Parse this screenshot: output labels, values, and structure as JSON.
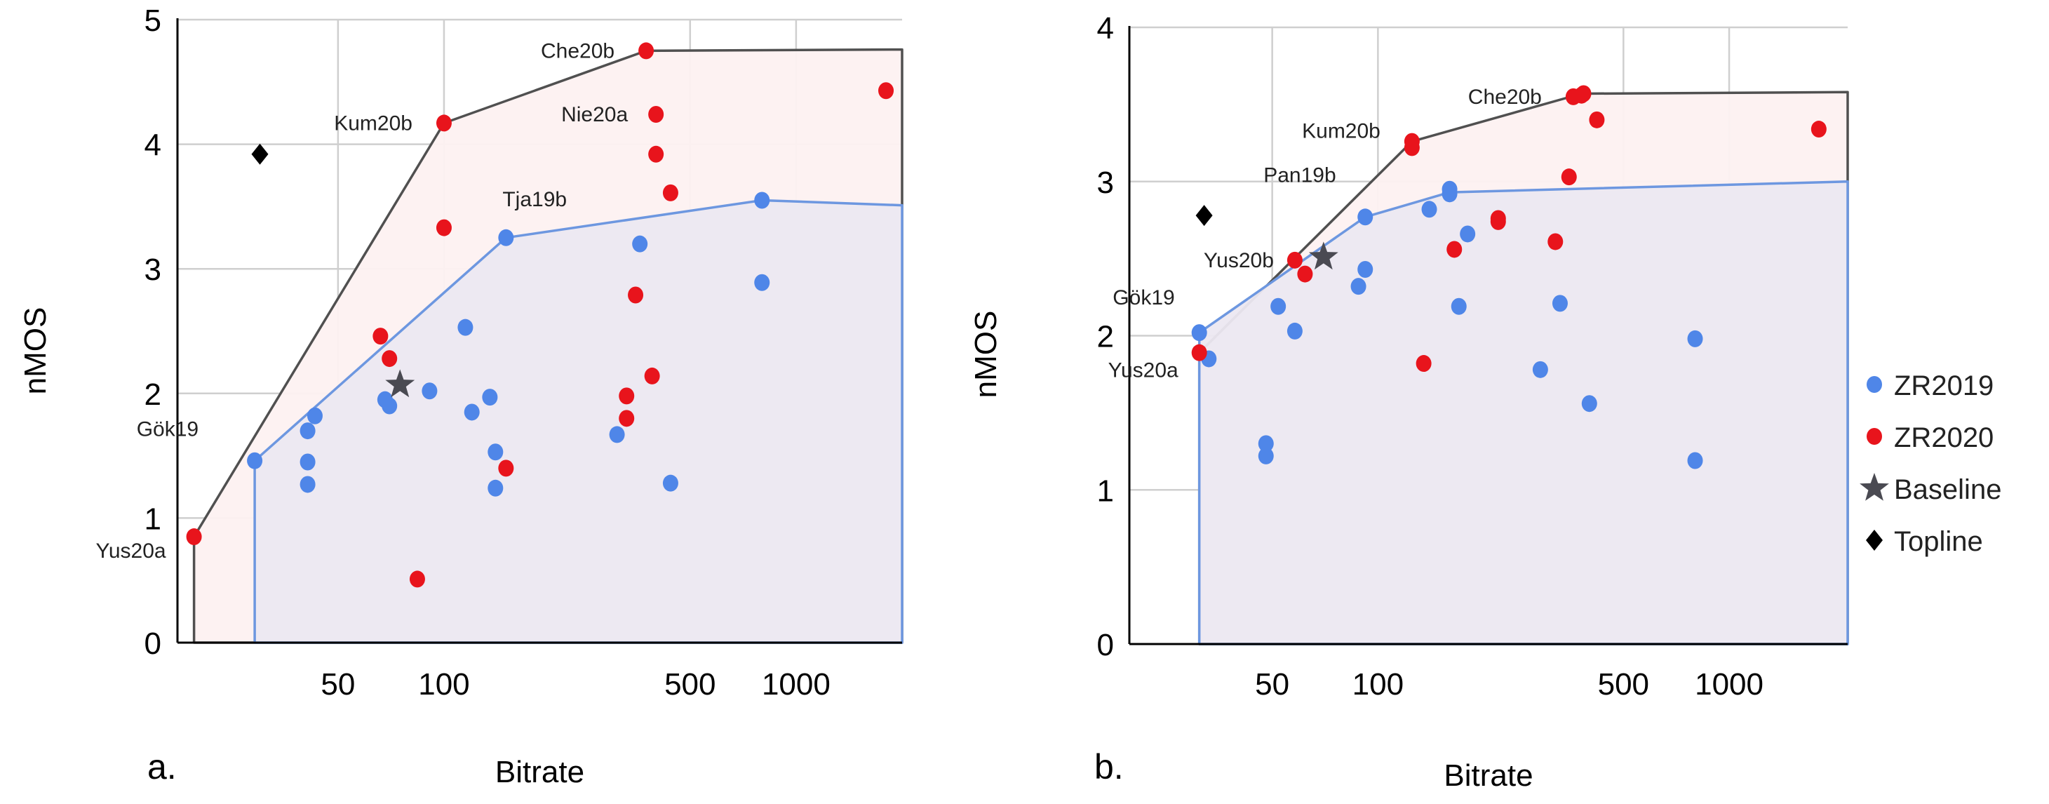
{
  "chart_data": [
    {
      "type": "scatter",
      "panel_label": "a.",
      "xlabel": "Bitrate",
      "ylabel": "nMOS",
      "xscale": "log",
      "xlim": [
        17.5,
        2000
      ],
      "ylim": [
        0,
        5
      ],
      "xticks": [
        50,
        100,
        500,
        1000
      ],
      "xtick_labels": [
        "50",
        "100",
        "500",
        "1000"
      ],
      "yticks": [
        0,
        1,
        2,
        3,
        4,
        5
      ],
      "ytick_labels": [
        "0",
        "1",
        "2",
        "3",
        "4",
        "5"
      ],
      "grid": true,
      "series": [
        {
          "name": "ZR2019",
          "color": "#4f86e8",
          "marker": "circle",
          "points": [
            {
              "x": 29,
              "y": 1.46,
              "label": "Gök19"
            },
            {
              "x": 41,
              "y": 1.7
            },
            {
              "x": 41,
              "y": 1.45
            },
            {
              "x": 41,
              "y": 1.27
            },
            {
              "x": 43,
              "y": 1.82
            },
            {
              "x": 68,
              "y": 1.95
            },
            {
              "x": 70,
              "y": 1.9
            },
            {
              "x": 91,
              "y": 2.02
            },
            {
              "x": 115,
              "y": 2.53
            },
            {
              "x": 120,
              "y": 1.85
            },
            {
              "x": 135,
              "y": 1.97
            },
            {
              "x": 140,
              "y": 1.53
            },
            {
              "x": 140,
              "y": 1.24
            },
            {
              "x": 150,
              "y": 3.25,
              "label": "Tja19b"
            },
            {
              "x": 310,
              "y": 1.67
            },
            {
              "x": 360,
              "y": 3.2
            },
            {
              "x": 440,
              "y": 1.28
            },
            {
              "x": 800,
              "y": 3.55
            },
            {
              "x": 800,
              "y": 2.89
            }
          ]
        },
        {
          "name": "ZR2020",
          "color": "#e8141c",
          "marker": "circle",
          "points": [
            {
              "x": 19.5,
              "y": 0.85,
              "label": "Yus20a"
            },
            {
              "x": 66,
              "y": 2.46
            },
            {
              "x": 70,
              "y": 2.28
            },
            {
              "x": 84,
              "y": 0.51
            },
            {
              "x": 100,
              "y": 4.17,
              "label": "Kum20b"
            },
            {
              "x": 100,
              "y": 3.33
            },
            {
              "x": 150,
              "y": 1.4
            },
            {
              "x": 330,
              "y": 1.98
            },
            {
              "x": 330,
              "y": 1.8
            },
            {
              "x": 350,
              "y": 2.79
            },
            {
              "x": 375,
              "y": 4.75,
              "label": "Che20b"
            },
            {
              "x": 390,
              "y": 2.14
            },
            {
              "x": 400,
              "y": 4.24,
              "label": "Nie20a"
            },
            {
              "x": 400,
              "y": 3.92
            },
            {
              "x": 440,
              "y": 3.61
            },
            {
              "x": 1800,
              "y": 4.43
            }
          ]
        },
        {
          "name": "Baseline",
          "color": "#4a4a52",
          "marker": "star",
          "points": [
            {
              "x": 75,
              "y": 2.07
            }
          ]
        },
        {
          "name": "Topline",
          "color": "#000000",
          "marker": "diamond",
          "points": [
            {
              "x": 30,
              "y": 3.92
            }
          ]
        }
      ],
      "frontiers": [
        {
          "name": "ZR2020 frontier",
          "line_color": "#505050",
          "fill_color": "#fdf1f1",
          "points": [
            [
              19.5,
              0
            ],
            [
              19.5,
              0.85
            ],
            [
              100,
              4.17
            ],
            [
              375,
              4.75
            ],
            [
              2000,
              4.76
            ],
            [
              2000,
              0
            ]
          ]
        },
        {
          "name": "ZR2019 frontier",
          "line_color": "#6d97e0",
          "fill_color": "#ece8f1",
          "points": [
            [
              29,
              0
            ],
            [
              29,
              1.46
            ],
            [
              150,
              3.25
            ],
            [
              800,
              3.55
            ],
            [
              2000,
              3.51
            ],
            [
              2000,
              0
            ]
          ]
        }
      ]
    },
    {
      "type": "scatter",
      "panel_label": "b.",
      "xlabel": "Bitrate",
      "ylabel": "nMOS",
      "xscale": "log",
      "xlim": [
        19.6,
        2175
      ],
      "ylim": [
        0,
        4
      ],
      "xticks": [
        50,
        100,
        500,
        1000
      ],
      "xtick_labels": [
        "50",
        "100",
        "500",
        "1000"
      ],
      "yticks": [
        0,
        1,
        2,
        3,
        4
      ],
      "ytick_labels": [
        "0",
        "1",
        "2",
        "3",
        "4"
      ],
      "grid": true,
      "series": [
        {
          "name": "ZR2019",
          "color": "#4f86e8",
          "marker": "circle",
          "points": [
            {
              "x": 31,
              "y": 2.02,
              "label": "Gök19"
            },
            {
              "x": 33,
              "y": 1.85
            },
            {
              "x": 48,
              "y": 1.3
            },
            {
              "x": 48,
              "y": 1.22
            },
            {
              "x": 52,
              "y": 2.19
            },
            {
              "x": 58,
              "y": 2.03
            },
            {
              "x": 88,
              "y": 2.32
            },
            {
              "x": 92,
              "y": 2.43
            },
            {
              "x": 92,
              "y": 2.77,
              "label": "Pan19b"
            },
            {
              "x": 140,
              "y": 2.82
            },
            {
              "x": 160,
              "y": 2.95
            },
            {
              "x": 160,
              "y": 2.92
            },
            {
              "x": 170,
              "y": 2.19
            },
            {
              "x": 180,
              "y": 2.66
            },
            {
              "x": 290,
              "y": 1.78
            },
            {
              "x": 330,
              "y": 2.21
            },
            {
              "x": 400,
              "y": 1.56
            },
            {
              "x": 800,
              "y": 1.98
            },
            {
              "x": 800,
              "y": 1.19
            }
          ]
        },
        {
          "name": "ZR2020",
          "color": "#e8141c",
          "marker": "circle",
          "points": [
            {
              "x": 31,
              "y": 1.89,
              "label": "Yus20a"
            },
            {
              "x": 58,
              "y": 2.49,
              "label": "Yus20b"
            },
            {
              "x": 62,
              "y": 2.4
            },
            {
              "x": 125,
              "y": 3.26,
              "label": "Kum20b"
            },
            {
              "x": 125,
              "y": 3.22
            },
            {
              "x": 135,
              "y": 1.82
            },
            {
              "x": 165,
              "y": 2.56
            },
            {
              "x": 220,
              "y": 2.76
            },
            {
              "x": 220,
              "y": 2.74
            },
            {
              "x": 320,
              "y": 2.61
            },
            {
              "x": 350,
              "y": 3.03
            },
            {
              "x": 360,
              "y": 3.55,
              "label": "Che20b"
            },
            {
              "x": 380,
              "y": 3.56
            },
            {
              "x": 385,
              "y": 3.57
            },
            {
              "x": 420,
              "y": 3.4
            },
            {
              "x": 1800,
              "y": 3.34
            }
          ]
        },
        {
          "name": "Baseline",
          "color": "#4a4a52",
          "marker": "star",
          "points": [
            {
              "x": 70,
              "y": 2.51
            }
          ]
        },
        {
          "name": "Topline",
          "color": "#000000",
          "marker": "diamond",
          "points": [
            {
              "x": 32,
              "y": 2.78
            }
          ]
        }
      ],
      "frontiers": [
        {
          "name": "ZR2020 frontier",
          "line_color": "#505050",
          "fill_color": "#fdf1f1",
          "points": [
            [
              31,
              0
            ],
            [
              31,
              1.89
            ],
            [
              125,
              3.26
            ],
            [
              380,
              3.57
            ],
            [
              2175,
              3.58
            ],
            [
              2175,
              0
            ]
          ]
        },
        {
          "name": "ZR2019 frontier",
          "line_color": "#6d97e0",
          "fill_color": "#ece8f1",
          "points": [
            [
              31,
              0
            ],
            [
              31,
              2.02
            ],
            [
              92,
              2.77
            ],
            [
              160,
              2.93
            ],
            [
              2175,
              3.0
            ],
            [
              2175,
              0
            ]
          ]
        }
      ]
    }
  ],
  "legend": {
    "position": "right",
    "items": [
      {
        "label": "ZR2019",
        "marker": "circle",
        "color": "#4f86e8"
      },
      {
        "label": "ZR2020",
        "marker": "circle",
        "color": "#e8141c"
      },
      {
        "label": "Baseline",
        "marker": "star",
        "color": "#4a4a52"
      },
      {
        "label": "Topline",
        "marker": "diamond",
        "color": "#000000"
      }
    ]
  }
}
